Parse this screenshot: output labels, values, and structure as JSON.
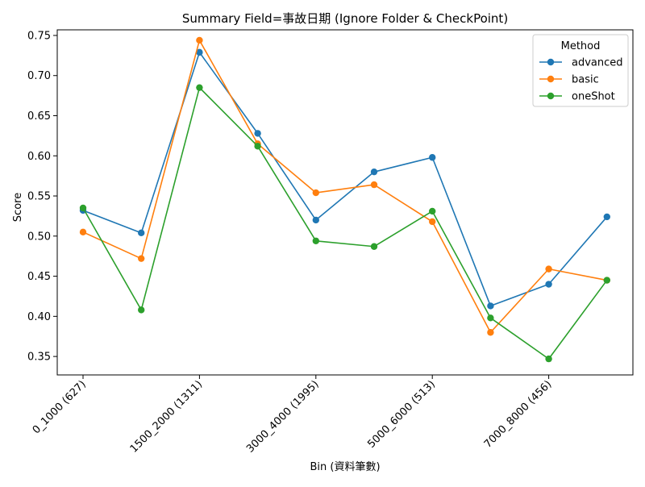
{
  "chart_data": {
    "type": "line",
    "title": "Summary Field=事故日期 (Ignore Folder & CheckPoint)",
    "xlabel": "Bin (資料筆數)",
    "ylabel": "Score",
    "categories": [
      "0_1000 (627)",
      "",
      "1500_2000 (1311)",
      "",
      "3000_4000 (1995)",
      "",
      "5000_6000 (513)",
      "",
      "7000_8000 (456)",
      ""
    ],
    "x_tick_labels": [
      {
        "index": 0,
        "label": "0_1000 (627)"
      },
      {
        "index": 2,
        "label": "1500_2000 (1311)"
      },
      {
        "index": 4,
        "label": "3000_4000 (1995)"
      },
      {
        "index": 6,
        "label": "5000_6000 (513)"
      },
      {
        "index": 8,
        "label": "7000_8000 (456)"
      }
    ],
    "y_ticks": [
      "0.35",
      "0.40",
      "0.45",
      "0.50",
      "0.55",
      "0.60",
      "0.65",
      "0.70",
      "0.75"
    ],
    "ylim": [
      0.327,
      0.757
    ],
    "legend": {
      "title": "Method",
      "placement": "top-right"
    },
    "series": [
      {
        "name": "advanced",
        "color": "#1f77b4",
        "values": [
          0.532,
          0.504,
          0.729,
          0.628,
          0.52,
          0.58,
          0.598,
          0.413,
          0.44,
          0.524
        ]
      },
      {
        "name": "basic",
        "color": "#ff7f0e",
        "values": [
          0.505,
          0.472,
          0.744,
          0.615,
          0.554,
          0.564,
          0.518,
          0.38,
          0.459,
          0.445
        ]
      },
      {
        "name": "oneShot",
        "color": "#2ca02c",
        "values": [
          0.535,
          0.408,
          0.685,
          0.612,
          0.494,
          0.487,
          0.531,
          0.398,
          0.347,
          0.445
        ]
      }
    ]
  }
}
